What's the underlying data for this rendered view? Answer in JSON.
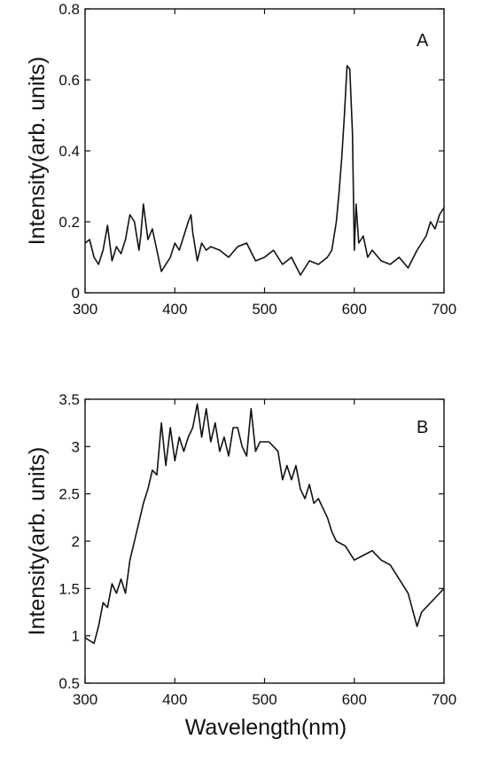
{
  "chart_data": [
    {
      "type": "line",
      "panel_label": "A",
      "xlabel": "",
      "ylabel": "Intensity(arb. units)",
      "xlim": [
        300,
        700
      ],
      "ylim": [
        0,
        0.8
      ],
      "xticks": [
        300,
        400,
        500,
        600,
        700
      ],
      "yticks": [
        0,
        0.2,
        0.4,
        0.6,
        0.8
      ],
      "ytick_labels": [
        "0",
        "0.2",
        "0.4",
        "0.6",
        "0.8"
      ],
      "grid": false,
      "series": [
        {
          "x": [
            300,
            305,
            310,
            315,
            320,
            325,
            330,
            335,
            340,
            345,
            350,
            355,
            360,
            362,
            365,
            370,
            375,
            380,
            385,
            390,
            395,
            400,
            405,
            410,
            415,
            418,
            420,
            425,
            430,
            435,
            440,
            450,
            460,
            470,
            480,
            490,
            500,
            510,
            520,
            530,
            540,
            545,
            550,
            560,
            570,
            575,
            580,
            583,
            586,
            589,
            592,
            595,
            598,
            600,
            602,
            605,
            610,
            615,
            620,
            630,
            640,
            650,
            660,
            670,
            680,
            685,
            690,
            695,
            700
          ],
          "y": [
            0.14,
            0.15,
            0.1,
            0.08,
            0.12,
            0.19,
            0.09,
            0.13,
            0.11,
            0.15,
            0.22,
            0.2,
            0.12,
            0.16,
            0.25,
            0.15,
            0.18,
            0.12,
            0.06,
            0.08,
            0.1,
            0.14,
            0.12,
            0.16,
            0.2,
            0.22,
            0.17,
            0.09,
            0.14,
            0.12,
            0.13,
            0.12,
            0.1,
            0.13,
            0.14,
            0.09,
            0.1,
            0.12,
            0.08,
            0.1,
            0.05,
            0.07,
            0.09,
            0.08,
            0.1,
            0.12,
            0.2,
            0.28,
            0.38,
            0.5,
            0.64,
            0.63,
            0.45,
            0.12,
            0.25,
            0.14,
            0.16,
            0.1,
            0.12,
            0.09,
            0.08,
            0.1,
            0.07,
            0.12,
            0.16,
            0.2,
            0.18,
            0.22,
            0.24
          ]
        }
      ]
    },
    {
      "type": "line",
      "panel_label": "B",
      "xlabel": "Wavelength(nm)",
      "ylabel": "Intensity(arb. units)",
      "xlim": [
        300,
        700
      ],
      "ylim": [
        0.5,
        3.5
      ],
      "xticks": [
        300,
        400,
        500,
        600,
        700
      ],
      "yticks": [
        0.5,
        1,
        1.5,
        2,
        2.5,
        3,
        3.5
      ],
      "ytick_labels": [
        "0.5",
        "1",
        "1.5",
        "2",
        "2.5",
        "3",
        "3.5"
      ],
      "grid": false,
      "series": [
        {
          "x": [
            300,
            305,
            310,
            315,
            320,
            325,
            330,
            335,
            340,
            345,
            350,
            355,
            360,
            365,
            370,
            375,
            380,
            385,
            390,
            395,
            400,
            405,
            410,
            415,
            420,
            425,
            430,
            435,
            440,
            445,
            450,
            455,
            460,
            465,
            470,
            475,
            480,
            485,
            490,
            495,
            500,
            505,
            510,
            515,
            520,
            525,
            530,
            535,
            540,
            545,
            550,
            555,
            560,
            565,
            570,
            575,
            580,
            590,
            600,
            610,
            620,
            630,
            640,
            650,
            660,
            670,
            675,
            680,
            690,
            700
          ],
          "y": [
            0.98,
            0.95,
            0.92,
            1.1,
            1.35,
            1.3,
            1.55,
            1.45,
            1.6,
            1.45,
            1.8,
            2.0,
            2.2,
            2.4,
            2.55,
            2.75,
            2.7,
            3.25,
            2.8,
            3.2,
            2.85,
            3.1,
            2.95,
            3.1,
            3.2,
            3.45,
            3.1,
            3.4,
            3.05,
            3.25,
            2.95,
            3.1,
            2.9,
            3.2,
            3.2,
            3.0,
            2.9,
            3.4,
            2.95,
            3.05,
            3.05,
            3.05,
            3.0,
            2.95,
            2.65,
            2.8,
            2.65,
            2.8,
            2.55,
            2.45,
            2.6,
            2.4,
            2.45,
            2.35,
            2.25,
            2.1,
            2.0,
            1.95,
            1.8,
            1.85,
            1.9,
            1.8,
            1.75,
            1.6,
            1.45,
            1.1,
            1.25,
            1.3,
            1.4,
            1.5
          ]
        }
      ]
    }
  ]
}
